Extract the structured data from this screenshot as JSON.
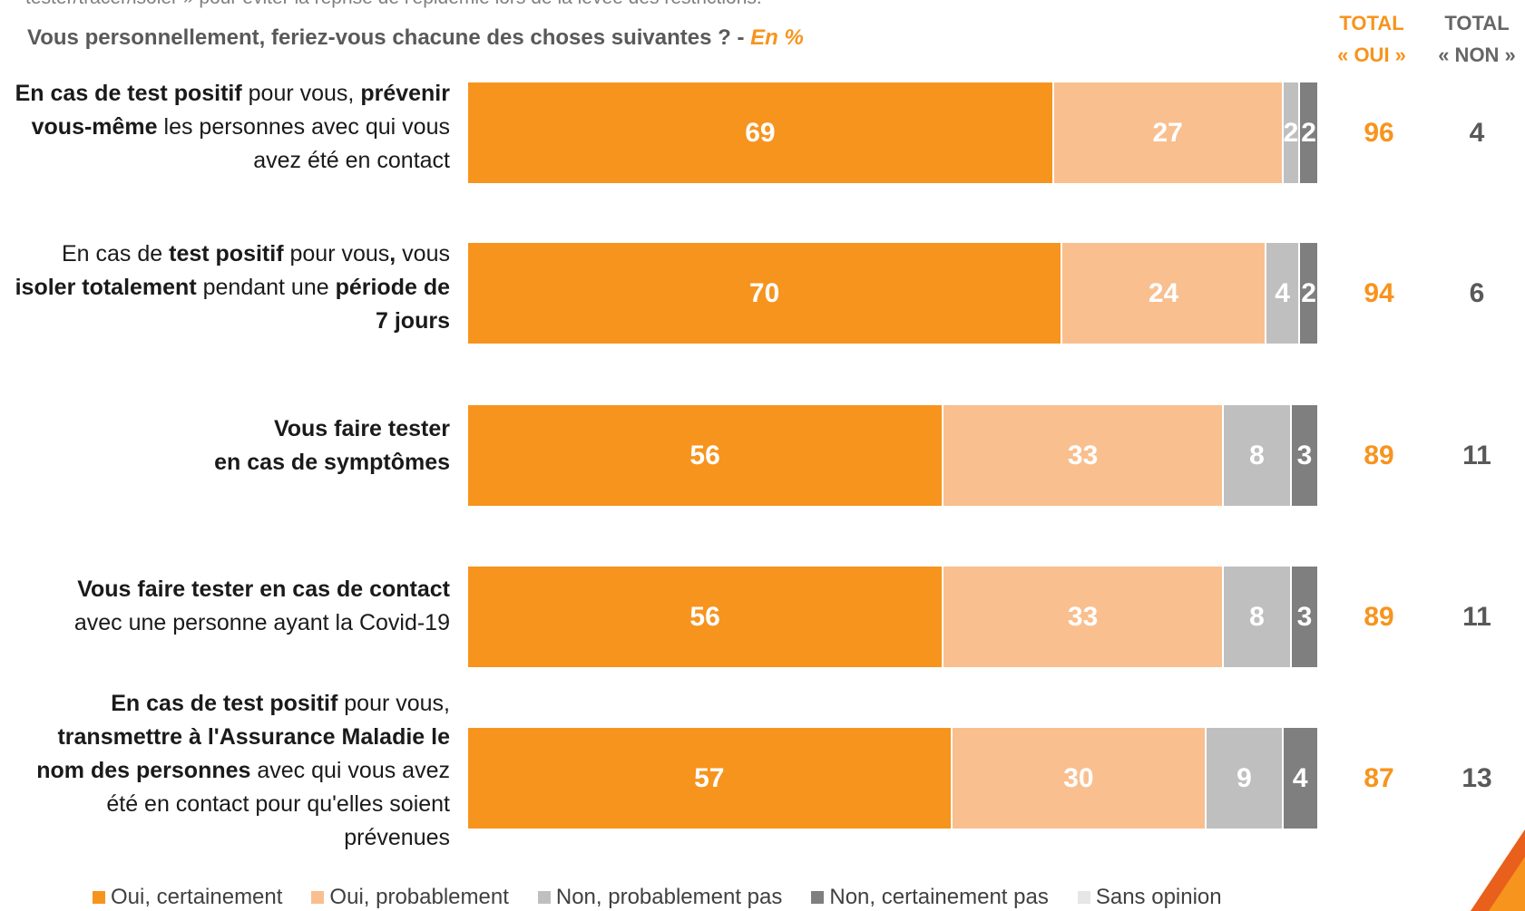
{
  "intro_text": "tester/tracer/isoler » pour éviter la reprise de l'épidémie lors de la levée des restrictions.",
  "question": {
    "text": "Vous personnellement, feriez-vous chacune des choses suivantes ?  -",
    "unit": "En %"
  },
  "columns": {
    "oui_line1": "TOTAL",
    "oui_line2": "« OUI »",
    "non_line1": "TOTAL",
    "non_line2": "« NON »"
  },
  "colors": {
    "oui_certainement": "#f7941d",
    "oui_probablement": "#f9bf8f",
    "non_probablement": "#bfbfbf",
    "non_certainement": "#7f7f7f",
    "sans_opinion": "#e6e6e6"
  },
  "chart_data": {
    "type": "bar",
    "orientation": "horizontal-stacked",
    "title": "Vous personnellement, feriez-vous chacune des choses suivantes ?",
    "xlim": [
      0,
      100
    ],
    "grid": false,
    "legend_position": "bottom",
    "categories": [
      "En cas de test positif pour vous, prévenir vous-même les personnes avec qui vous avez été en contact",
      "En cas de test positif pour vous, vous isoler totalement pendant une période de 7 jours",
      "Vous faire tester en cas de symptômes",
      "Vous faire tester en cas de contact avec une personne ayant la Covid-19",
      "En cas de test positif pour vous, transmettre à l'Assurance Maladie le nom des personnes avec qui vous avez été en contact pour qu'elles soient prévenues"
    ],
    "series": [
      {
        "name": "Oui, certainement",
        "values": [
          69,
          70,
          56,
          56,
          57
        ]
      },
      {
        "name": "Oui, probablement",
        "values": [
          27,
          24,
          33,
          33,
          30
        ]
      },
      {
        "name": "Non, probablement pas",
        "values": [
          2,
          4,
          8,
          8,
          9
        ]
      },
      {
        "name": "Non, certainement pas",
        "values": [
          2,
          2,
          3,
          3,
          4
        ]
      },
      {
        "name": "Sans opinion",
        "values": [
          0,
          0,
          0,
          0,
          0
        ]
      }
    ],
    "total_oui": [
      96,
      94,
      89,
      89,
      87
    ],
    "total_non": [
      4,
      6,
      11,
      11,
      13
    ]
  },
  "rows": [
    {
      "label_parts": [
        {
          "text": "En cas de test positif",
          "bold": true
        },
        {
          "text": " pour vous, ",
          "bold": false
        },
        {
          "text": "prévenir vous-même",
          "bold": true
        },
        {
          "text": " les personnes avec qui vous avez été en contact",
          "bold": false
        }
      ]
    },
    {
      "label_parts": [
        {
          "text": "En cas de ",
          "bold": false
        },
        {
          "text": "test positif",
          "bold": true
        },
        {
          "text": " pour vous",
          "bold": false
        },
        {
          "text": ",",
          "bold": true
        },
        {
          "text": " vous ",
          "bold": false
        },
        {
          "text": "isoler totalement",
          "bold": true
        },
        {
          "text": " pendant une ",
          "bold": false
        },
        {
          "text": "période de 7 jours",
          "bold": true
        }
      ]
    },
    {
      "label_parts": [
        {
          "text": "Vous faire tester",
          "bold": true,
          "br": true
        },
        {
          "text": "en cas de symptômes",
          "bold": true
        }
      ]
    },
    {
      "label_parts": [
        {
          "text": "Vous faire tester en cas de contact",
          "bold": true,
          "br": true
        },
        {
          "text": "avec une personne ayant la Covid-19",
          "bold": false
        }
      ]
    },
    {
      "label_parts": [
        {
          "text": "En cas de test positif",
          "bold": true
        },
        {
          "text": " pour vous, ",
          "bold": false
        },
        {
          "text": "transmettre à l'Assurance Maladie le nom des personnes",
          "bold": true
        },
        {
          "text": " avec qui vous avez été en contact pour qu'elles soient prévenues",
          "bold": false
        }
      ]
    }
  ]
}
